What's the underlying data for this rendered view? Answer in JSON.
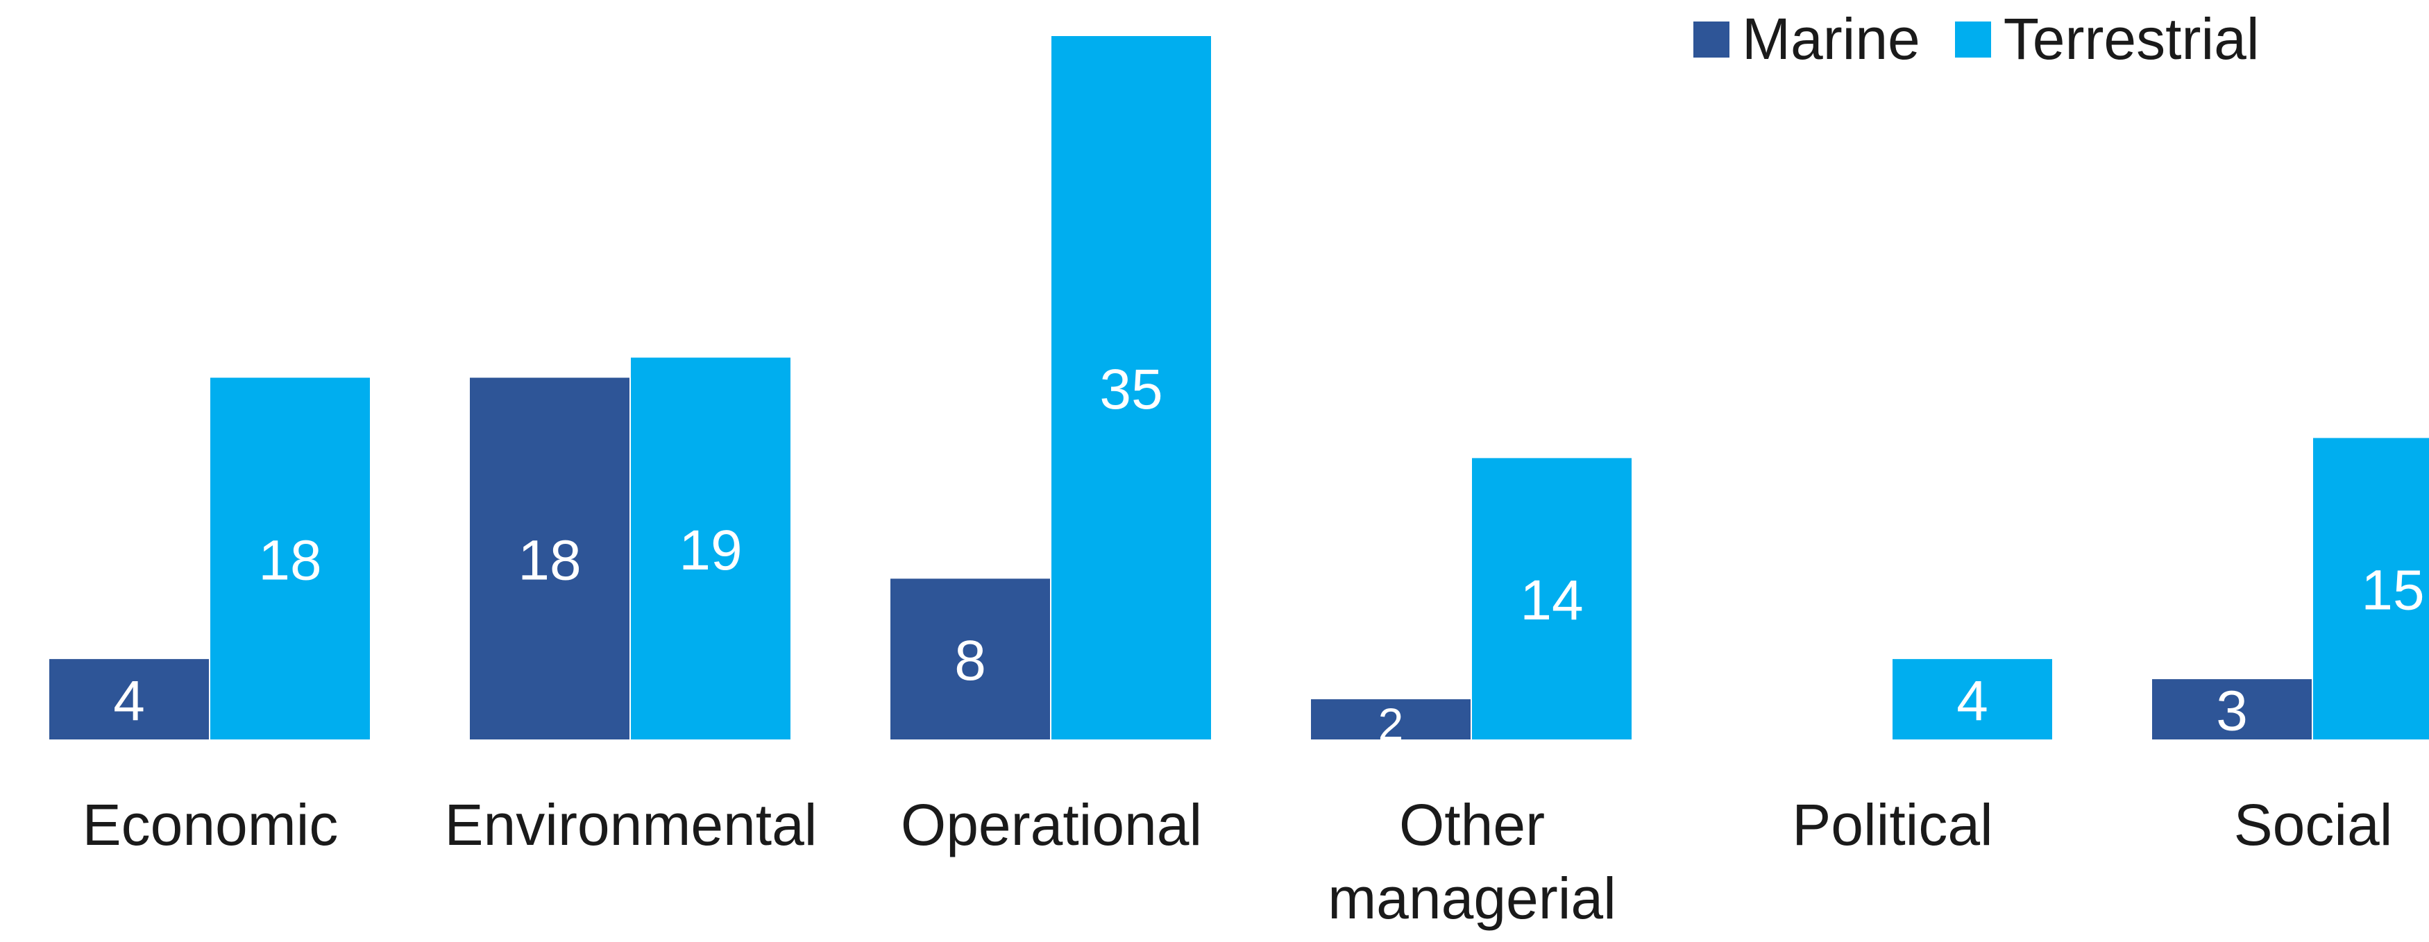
{
  "chart_data": {
    "type": "bar",
    "title": "",
    "xlabel": "",
    "ylabel": "",
    "categories": [
      "Economic",
      "Environmental",
      "Operational",
      "Other\nmanagerial",
      "Political",
      "Social"
    ],
    "series": [
      {
        "name": "Marine",
        "color": "#2e5597",
        "values": [
          4,
          18,
          8,
          2,
          0,
          3
        ]
      },
      {
        "name": "Terrestrial",
        "color": "#00aeef",
        "values": [
          18,
          19,
          35,
          14,
          4,
          15
        ]
      }
    ],
    "ylim": [
      0,
      35
    ],
    "grid": false,
    "legend_position": "top-right",
    "data_label_color": "#ffffff",
    "label_color": "#1a1a1a"
  }
}
